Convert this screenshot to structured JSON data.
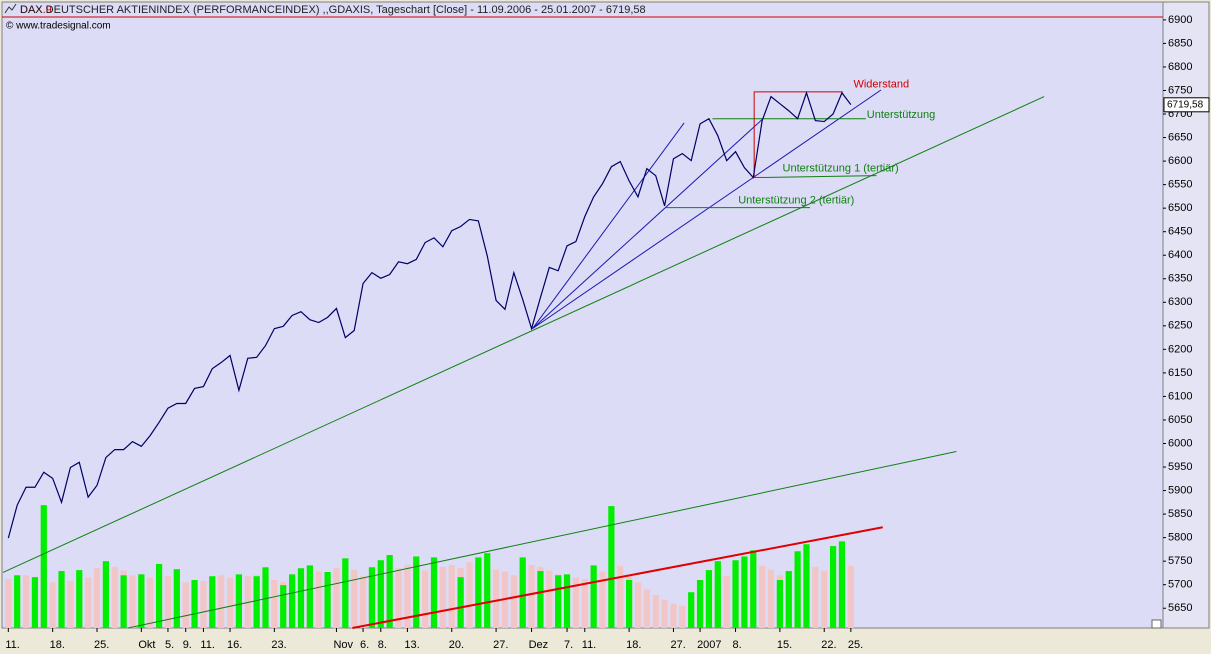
{
  "chart_data": {
    "type": "line",
    "symbol": "DAX.9",
    "title": "DAX DEUTSCHER AKTIENINDEX (PERFORMANCEINDEX) ,,GDAXIS, Tageschart [Close] - 11.09.2006 - 25.01.2007 - 6719,58",
    "source": "© www.tradesignal.com",
    "categories": [
      "11.",
      null,
      null,
      null,
      null,
      "18.",
      null,
      null,
      null,
      null,
      "25.",
      null,
      null,
      null,
      null,
      "Okt",
      null,
      null,
      "5.",
      null,
      "9.",
      null,
      "11.",
      null,
      null,
      "16.",
      null,
      null,
      null,
      null,
      "23.",
      null,
      null,
      null,
      null,
      null,
      null,
      "Nov",
      null,
      null,
      "6.",
      null,
      "8.",
      null,
      null,
      "13.",
      null,
      null,
      null,
      null,
      "20.",
      null,
      null,
      null,
      null,
      "27.",
      null,
      null,
      null,
      "Dez",
      null,
      null,
      null,
      "7.",
      null,
      "11.",
      null,
      null,
      null,
      null,
      "18.",
      null,
      null,
      null,
      null,
      "27.",
      null,
      null,
      "2007",
      null,
      null,
      null,
      "8.",
      null,
      null,
      null,
      null,
      "15.",
      null,
      null,
      null,
      null,
      "22.",
      null,
      null,
      "25."
    ],
    "series": [
      {
        "type": "bar",
        "color": "#f2c6c6",
        "values": [
          5712,
          5705,
          5720,
          5715,
          5730,
          5705,
          5725,
          5708,
          5722,
          5715,
          5735,
          5742,
          5738,
          5730,
          5720,
          5722,
          5715,
          5728,
          5718,
          5712,
          5705,
          5700,
          5708,
          5716,
          5720,
          5715,
          5712,
          5718,
          5720,
          5725,
          5710,
          5706,
          5712,
          5718,
          5722,
          5728,
          5720,
          5735,
          5740,
          5732,
          5718,
          5712,
          5722,
          5728,
          5735,
          5742,
          5738,
          5730,
          5725,
          5738,
          5742,
          5735,
          5748,
          5744,
          5738,
          5732,
          5728,
          5720,
          5735,
          5742,
          5738,
          5730,
          5722,
          5718,
          5715,
          5712,
          5708,
          5728,
          5745,
          5740,
          5720,
          5705,
          5690,
          5678,
          5668,
          5660,
          5655,
          5660,
          5670,
          5685,
          5705,
          5718,
          5735,
          5742,
          5745,
          5740,
          5732,
          5720,
          5728,
          5735,
          5740,
          5738,
          5730,
          5735,
          5738,
          5740
        ]
      },
      {
        "type": "bar",
        "color": "#00ee00",
        "values": [
          null,
          5720,
          null,
          5716,
          5869,
          null,
          5729,
          null,
          5731,
          null,
          null,
          5750,
          null,
          5720,
          null,
          5722,
          null,
          5744,
          null,
          5733,
          null,
          5710,
          null,
          5718,
          null,
          null,
          5722,
          null,
          5718,
          5737,
          null,
          5699,
          5722,
          5735,
          5741,
          null,
          5727,
          null,
          5756,
          null,
          null,
          5737,
          5752,
          5763,
          null,
          null,
          5760,
          null,
          5758,
          null,
          null,
          5716,
          null,
          5758,
          5767,
          null,
          null,
          null,
          5758,
          null,
          5729,
          null,
          5720,
          5722,
          null,
          null,
          5741,
          null,
          5867,
          null,
          5710,
          null,
          null,
          null,
          null,
          null,
          null,
          5684,
          5710,
          5731,
          5750,
          null,
          5752,
          5760,
          5773,
          null,
          null,
          5710,
          5729,
          5771,
          5786,
          null,
          null,
          5782,
          5792,
          null
        ]
      },
      {
        "color": "#000066",
        "values": [
          5799,
          5869,
          5907,
          5907,
          5939,
          5926,
          5875,
          5949,
          5960,
          5886,
          5911,
          5970,
          5987,
          5987,
          6004,
          5994,
          6017,
          6045,
          6075,
          6085,
          6085,
          6117,
          6121,
          6159,
          6172,
          6187,
          6113,
          6181,
          6183,
          6208,
          6244,
          6249,
          6272,
          6280,
          6263,
          6257,
          6268,
          6287,
          6225,
          6240,
          6340,
          6363,
          6351,
          6359,
          6386,
          6382,
          6391,
          6427,
          6437,
          6418,
          6452,
          6461,
          6476,
          6473,
          6399,
          6304,
          6285,
          6363,
          6306,
          6244,
          6310,
          6374,
          6367,
          6420,
          6429,
          6482,
          6524,
          6552,
          6588,
          6599,
          6558,
          6524,
          6584,
          6569,
          6505,
          6605,
          6616,
          6601,
          6679,
          6690,
          6654,
          6601,
          6620,
          6586,
          6565,
          6686,
          6737,
          6722,
          6707,
          6690,
          6745,
          6686,
          6684,
          6700,
          6745,
          6720
        ]
      }
    ],
    "xlim": [
      -0.6,
      130.2
    ],
    "ylim": [
      5608,
      6904
    ],
    "yticks": [
      5650,
      5700,
      5750,
      5800,
      5850,
      5900,
      5950,
      6000,
      6050,
      6100,
      6150,
      6200,
      6250,
      6300,
      6350,
      6400,
      6450,
      6500,
      6550,
      6600,
      6650,
      6700,
      6750,
      6800,
      6850,
      6900
    ],
    "last_price": {
      "value": 6719.58,
      "label": "6719,58"
    },
    "lines": [
      {
        "color": "#108010",
        "width": 1,
        "x": [
          -0.6,
          116.8
        ],
        "y": [
          5726,
          6737
        ]
      },
      {
        "color": "#108010",
        "width": 1,
        "x": [
          13.5,
          106.9
        ],
        "y": [
          5608,
          5983
        ]
      },
      {
        "color": "#e00000",
        "width": 2,
        "x": [
          38.8,
          98.6
        ],
        "y": [
          5608,
          5822
        ]
      },
      {
        "color": "#1818b0",
        "width": 1,
        "x": [
          59.1,
          76.2
        ],
        "y": [
          6244,
          6681
        ]
      },
      {
        "color": "#1818b0",
        "width": 1,
        "x": [
          59.1,
          85.1
        ],
        "y": [
          6244,
          6690
        ]
      },
      {
        "color": "#1818b0",
        "width": 1,
        "x": [
          59.1,
          98.4
        ],
        "y": [
          6244,
          6751
        ]
      },
      {
        "color": "#108010",
        "width": 1,
        "x": [
          79.4,
          96.7
        ],
        "y": [
          6690,
          6690
        ]
      },
      {
        "color": "#108010",
        "width": 1,
        "x": [
          84.1,
          97.9
        ],
        "y": [
          6565,
          6569
        ]
      },
      {
        "color": "#108010",
        "width": 1,
        "x": [
          74.1,
          90.4
        ],
        "y": [
          6501,
          6501
        ]
      },
      {
        "color": "#d00000",
        "width": 1,
        "x": [
          84.1,
          84.1,
          94.1
        ],
        "y": [
          6565,
          6747,
          6747
        ]
      }
    ],
    "annotations": [
      {
        "text": "Widerstand",
        "color": "#d00000",
        "x": 95.3,
        "y": 6762
      },
      {
        "text": "Unterstützung",
        "color": "#108010",
        "x": 96.8,
        "y": 6698
      },
      {
        "text": "Unterstützung 1 (tertiär)",
        "color": "#108010",
        "x": 87.3,
        "y": 6584
      },
      {
        "text": "Unterstützung 2 (tertiär)",
        "color": "#108010",
        "x": 82.3,
        "y": 6516
      }
    ]
  }
}
